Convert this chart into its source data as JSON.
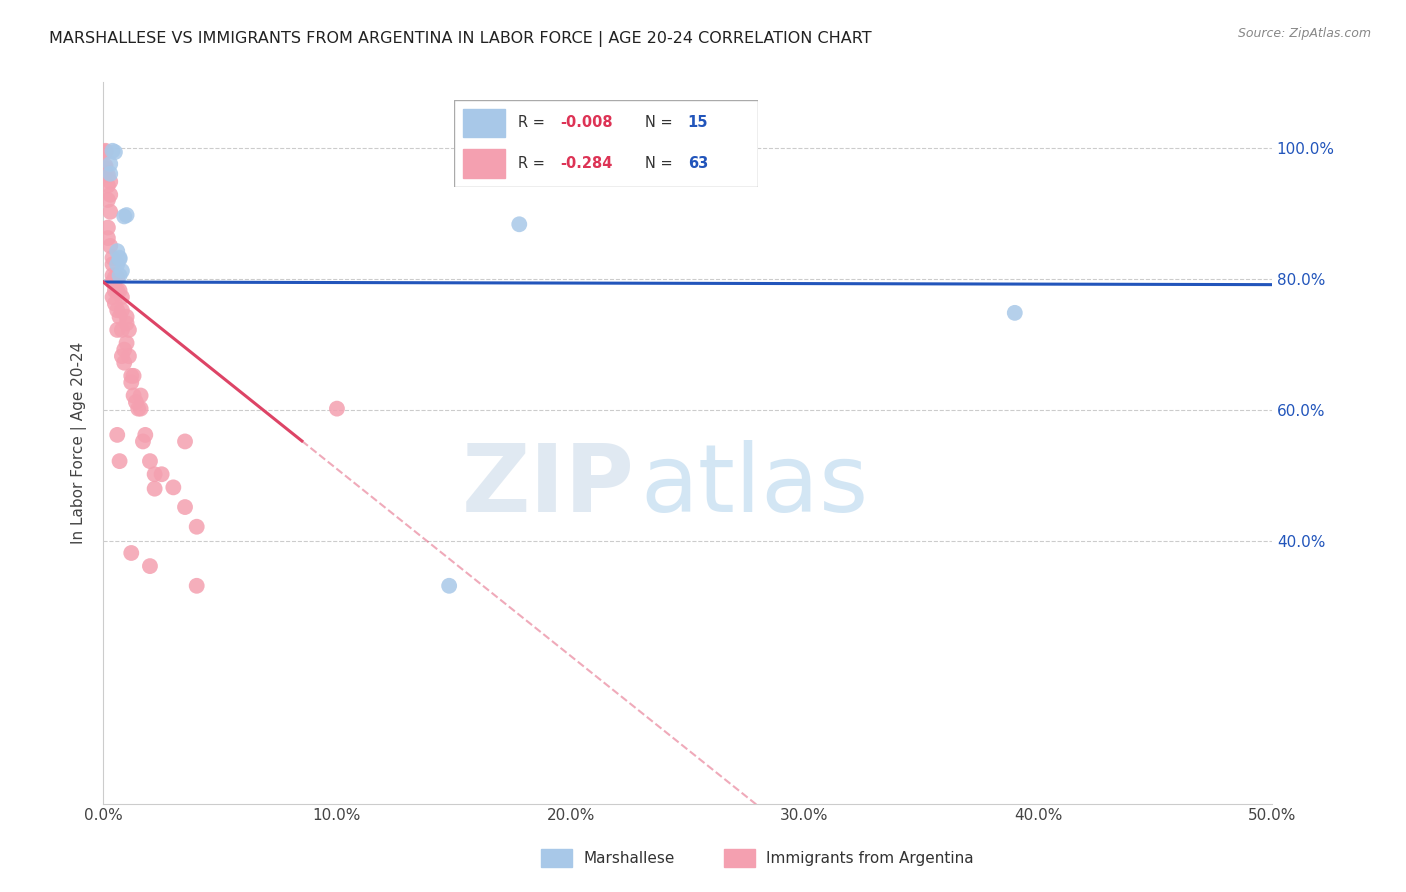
{
  "title": "MARSHALLESE VS IMMIGRANTS FROM ARGENTINA IN LABOR FORCE | AGE 20-24 CORRELATION CHART",
  "source": "Source: ZipAtlas.com",
  "ylabel": "In Labor Force | Age 20-24",
  "xlim": [
    0.0,
    0.5
  ],
  "ylim": [
    0.0,
    1.1
  ],
  "xtick_labels": [
    "0.0%",
    "10.0%",
    "20.0%",
    "30.0%",
    "40.0%",
    "50.0%"
  ],
  "xtick_vals": [
    0.0,
    0.1,
    0.2,
    0.3,
    0.4,
    0.5
  ],
  "ytick_labels": [
    "100.0%",
    "80.0%",
    "60.0%",
    "40.0%"
  ],
  "ytick_vals": [
    1.0,
    0.8,
    0.6,
    0.4
  ],
  "blue_R": -0.008,
  "blue_N": 15,
  "pink_R": -0.284,
  "pink_N": 63,
  "blue_color": "#a8c8e8",
  "pink_color": "#f4a0b0",
  "blue_line_color": "#2255bb",
  "pink_line_color": "#dd4466",
  "blue_line_y0": 0.795,
  "blue_line_y1": 0.791,
  "pink_line_y0": 0.795,
  "pink_line_solid_end_x": 0.085,
  "pink_line_slope": -2.85,
  "blue_scatter": [
    [
      0.003,
      0.975
    ],
    [
      0.003,
      0.96
    ],
    [
      0.004,
      0.995
    ],
    [
      0.005,
      0.993
    ],
    [
      0.006,
      0.822
    ],
    [
      0.006,
      0.842
    ],
    [
      0.007,
      0.83
    ],
    [
      0.007,
      0.832
    ],
    [
      0.007,
      0.805
    ],
    [
      0.008,
      0.812
    ],
    [
      0.009,
      0.895
    ],
    [
      0.01,
      0.897
    ],
    [
      0.178,
      0.883
    ],
    [
      0.39,
      0.748
    ],
    [
      0.148,
      0.332
    ]
  ],
  "pink_scatter": [
    [
      0.001,
      0.995
    ],
    [
      0.001,
      0.993
    ],
    [
      0.001,
      0.972
    ],
    [
      0.001,
      0.968
    ],
    [
      0.001,
      0.962
    ],
    [
      0.002,
      0.878
    ],
    [
      0.002,
      0.862
    ],
    [
      0.002,
      0.958
    ],
    [
      0.002,
      0.942
    ],
    [
      0.002,
      0.92
    ],
    [
      0.003,
      0.948
    ],
    [
      0.003,
      0.928
    ],
    [
      0.003,
      0.902
    ],
    [
      0.003,
      0.85
    ],
    [
      0.004,
      0.805
    ],
    [
      0.004,
      0.795
    ],
    [
      0.004,
      0.772
    ],
    [
      0.004,
      0.822
    ],
    [
      0.004,
      0.832
    ],
    [
      0.005,
      0.782
    ],
    [
      0.005,
      0.762
    ],
    [
      0.005,
      0.802
    ],
    [
      0.006,
      0.802
    ],
    [
      0.006,
      0.782
    ],
    [
      0.006,
      0.752
    ],
    [
      0.006,
      0.722
    ],
    [
      0.007,
      0.742
    ],
    [
      0.007,
      0.782
    ],
    [
      0.008,
      0.772
    ],
    [
      0.008,
      0.752
    ],
    [
      0.008,
      0.722
    ],
    [
      0.008,
      0.682
    ],
    [
      0.009,
      0.692
    ],
    [
      0.009,
      0.672
    ],
    [
      0.01,
      0.742
    ],
    [
      0.01,
      0.702
    ],
    [
      0.01,
      0.732
    ],
    [
      0.011,
      0.722
    ],
    [
      0.011,
      0.682
    ],
    [
      0.012,
      0.652
    ],
    [
      0.012,
      0.642
    ],
    [
      0.013,
      0.622
    ],
    [
      0.013,
      0.652
    ],
    [
      0.014,
      0.612
    ],
    [
      0.015,
      0.602
    ],
    [
      0.016,
      0.622
    ],
    [
      0.016,
      0.602
    ],
    [
      0.017,
      0.552
    ],
    [
      0.018,
      0.562
    ],
    [
      0.02,
      0.522
    ],
    [
      0.022,
      0.502
    ],
    [
      0.025,
      0.502
    ],
    [
      0.03,
      0.482
    ],
    [
      0.035,
      0.452
    ],
    [
      0.006,
      0.562
    ],
    [
      0.007,
      0.522
    ],
    [
      0.012,
      0.382
    ],
    [
      0.02,
      0.362
    ],
    [
      0.035,
      0.552
    ],
    [
      0.04,
      0.332
    ],
    [
      0.04,
      0.422
    ],
    [
      0.1,
      0.602
    ],
    [
      0.022,
      0.48
    ]
  ],
  "watermark_text1": "ZIP",
  "watermark_text2": "atlas",
  "background_color": "#ffffff",
  "grid_color": "#cccccc"
}
